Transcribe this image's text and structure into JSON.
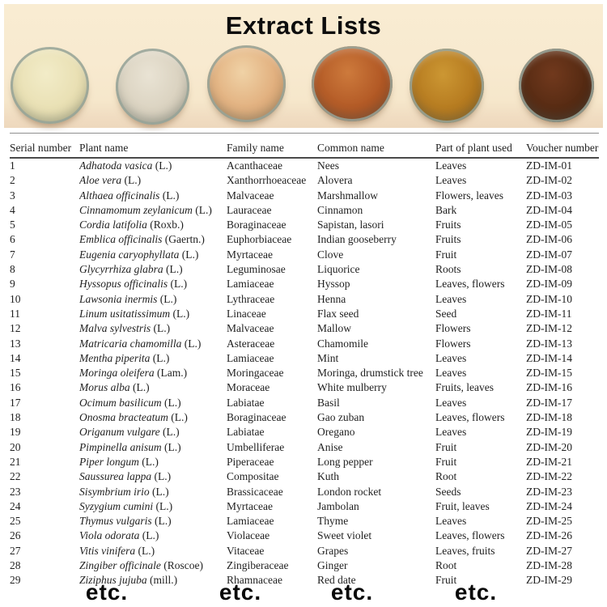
{
  "header": {
    "title": "Extract Lists"
  },
  "photo": {
    "background_color": "#f7e8cc",
    "dishes": [
      {
        "icon": "powder-dish-pale-cream",
        "colors": {
          "hi": "#f2ecc8",
          "base": "#e9e0b4",
          "lo": "#d3c797"
        }
      },
      {
        "icon": "powder-dish-off-white",
        "colors": {
          "hi": "#e9e3d4",
          "base": "#dbd3c1",
          "lo": "#bdb4a2"
        }
      },
      {
        "icon": "powder-dish-light-tan",
        "colors": {
          "hi": "#f0d2a6",
          "base": "#e2b180",
          "lo": "#c6905c"
        }
      },
      {
        "icon": "powder-dish-rust-orange",
        "colors": {
          "hi": "#cd7a3c",
          "base": "#b35a26",
          "lo": "#8a3d16"
        }
      },
      {
        "icon": "powder-dish-golden-ochre",
        "colors": {
          "hi": "#cc9733",
          "base": "#b67b20",
          "lo": "#8f5c13"
        }
      },
      {
        "icon": "powder-dish-dark-brown",
        "colors": {
          "hi": "#71391d",
          "base": "#572b13",
          "lo": "#3a1c0b"
        }
      }
    ]
  },
  "table": {
    "columns": [
      "Serial number",
      "Plant name",
      "Family name",
      "Common name",
      "Part of plant used",
      "Voucher number"
    ],
    "rows": [
      {
        "serial": "1",
        "plant": "Adhatoda vasica",
        "authority": "(L.)",
        "family": "Acanthaceae",
        "common": "Nees",
        "part": "Leaves",
        "voucher": "ZD-IM-01"
      },
      {
        "serial": "2",
        "plant": "Aloe vera",
        "authority": "(L.)",
        "family": "Xanthorrhoeaceae",
        "common": "Alovera",
        "part": "Leaves",
        "voucher": "ZD-IM-02"
      },
      {
        "serial": "3",
        "plant": "Althaea officinalis",
        "authority": "(L.)",
        "family": "Malvaceae",
        "common": "Marshmallow",
        "part": "Flowers, leaves",
        "voucher": "ZD-IM-03"
      },
      {
        "serial": "4",
        "plant": "Cinnamomum zeylanicum",
        "authority": "(L.)",
        "family": "Lauraceae",
        "common": "Cinnamon",
        "part": "Bark",
        "voucher": "ZD-IM-04"
      },
      {
        "serial": "5",
        "plant": "Cordia latifolia",
        "authority": "(Roxb.)",
        "family": "Boraginaceae",
        "common": "Sapistan, lasori",
        "part": "Fruits",
        "voucher": "ZD-IM-05"
      },
      {
        "serial": "6",
        "plant": "Emblica officinalis",
        "authority": "(Gaertn.)",
        "family": "Euphorbiaceae",
        "common": "Indian gooseberry",
        "part": "Fruits",
        "voucher": "ZD-IM-06"
      },
      {
        "serial": "7",
        "plant": "Eugenia caryophyllata",
        "authority": "(L.)",
        "family": "Myrtaceae",
        "common": "Clove",
        "part": "Fruit",
        "voucher": "ZD-IM-07"
      },
      {
        "serial": "8",
        "plant": "Glycyrrhiza glabra",
        "authority": "(L.)",
        "family": "Leguminosae",
        "common": "Liquorice",
        "part": "Roots",
        "voucher": "ZD-IM-08"
      },
      {
        "serial": "9",
        "plant": "Hyssopus officinalis",
        "authority": "(L.)",
        "family": "Lamiaceae",
        "common": "Hyssop",
        "part": "Leaves, flowers",
        "voucher": "ZD-IM-09"
      },
      {
        "serial": "10",
        "plant": "Lawsonia inermis",
        "authority": "(L.)",
        "family": "Lythraceae",
        "common": "Henna",
        "part": "Leaves",
        "voucher": "ZD-IM-10"
      },
      {
        "serial": "11",
        "plant": "Linum usitatissimum",
        "authority": "(L.)",
        "family": "Linaceae",
        "common": "Flax seed",
        "part": "Seed",
        "voucher": "ZD-IM-11"
      },
      {
        "serial": "12",
        "plant": "Malva sylvestris",
        "authority": "(L.)",
        "family": "Malvaceae",
        "common": "Mallow",
        "part": "Flowers",
        "voucher": "ZD-IM-12"
      },
      {
        "serial": "13",
        "plant": "Matricaria chamomilla",
        "authority": "(L.)",
        "family": "Asteraceae",
        "common": "Chamomile",
        "part": "Flowers",
        "voucher": "ZD-IM-13"
      },
      {
        "serial": "14",
        "plant": "Mentha piperita",
        "authority": "(L.)",
        "family": "Lamiaceae",
        "common": "Mint",
        "part": "Leaves",
        "voucher": "ZD-IM-14"
      },
      {
        "serial": "15",
        "plant": "Moringa oleifera",
        "authority": "(Lam.)",
        "family": "Moringaceae",
        "common": "Moringa, drumstick tree",
        "part": "Leaves",
        "voucher": "ZD-IM-15"
      },
      {
        "serial": "16",
        "plant": "Morus alba",
        "authority": "(L.)",
        "family": "Moraceae",
        "common": "White mulberry",
        "part": "Fruits, leaves",
        "voucher": "ZD-IM-16"
      },
      {
        "serial": "17",
        "plant": "Ocimum basilicum",
        "authority": "(L.)",
        "family": "Labiatae",
        "common": "Basil",
        "part": "Leaves",
        "voucher": "ZD-IM-17"
      },
      {
        "serial": "18",
        "plant": "Onosma bracteatum",
        "authority": "(L.)",
        "family": "Boraginaceae",
        "common": "Gao zuban",
        "part": "Leaves, flowers",
        "voucher": "ZD-IM-18"
      },
      {
        "serial": "19",
        "plant": "Origanum vulgare",
        "authority": "(L.)",
        "family": "Labiatae",
        "common": "Oregano",
        "part": "Leaves",
        "voucher": "ZD-IM-19"
      },
      {
        "serial": "20",
        "plant": "Pimpinella anisum",
        "authority": "(L.)",
        "family": "Umbelliferae",
        "common": "Anise",
        "part": "Fruit",
        "voucher": "ZD-IM-20"
      },
      {
        "serial": "21",
        "plant": "Piper longum",
        "authority": "(L.)",
        "family": "Piperaceae",
        "common": "Long pepper",
        "part": "Fruit",
        "voucher": "ZD-IM-21"
      },
      {
        "serial": "22",
        "plant": "Saussurea lappa",
        "authority": "(L.)",
        "family": "Compositae",
        "common": "Kuth",
        "part": "Root",
        "voucher": "ZD-IM-22"
      },
      {
        "serial": "23",
        "plant": "Sisymbrium irio",
        "authority": "(L.)",
        "family": "Brassicaceae",
        "common": "London rocket",
        "part": "Seeds",
        "voucher": "ZD-IM-23"
      },
      {
        "serial": "24",
        "plant": "Syzygium cumini",
        "authority": "(L.)",
        "family": "Myrtaceae",
        "common": "Jambolan",
        "part": "Fruit, leaves",
        "voucher": "ZD-IM-24"
      },
      {
        "serial": "25",
        "plant": "Thymus vulgaris",
        "authority": "(L.)",
        "family": "Lamiaceae",
        "common": "Thyme",
        "part": "Leaves",
        "voucher": "ZD-IM-25"
      },
      {
        "serial": "26",
        "plant": "Viola odorata",
        "authority": "(L.)",
        "family": "Violaceae",
        "common": "Sweet violet",
        "part": "Leaves, flowers",
        "voucher": "ZD-IM-26"
      },
      {
        "serial": "27",
        "plant": "Vitis vinifera",
        "authority": "(L.)",
        "family": "Vitaceae",
        "common": "Grapes",
        "part": "Leaves, fruits",
        "voucher": "ZD-IM-27"
      },
      {
        "serial": "28",
        "plant": "Zingiber officinale",
        "authority": "(Roscoe)",
        "family": "Zingiberaceae",
        "common": "Ginger",
        "part": "Root",
        "voucher": "ZD-IM-28"
      },
      {
        "serial": "29",
        "plant": "Ziziphus jujuba",
        "authority": "(mill.)",
        "family": "Rhamnaceae",
        "common": "Red date",
        "part": "Fruit",
        "voucher": "ZD-IM-29"
      }
    ]
  },
  "footer": {
    "etc_labels": [
      "etc.",
      "etc.",
      "etc.",
      "etc."
    ]
  }
}
